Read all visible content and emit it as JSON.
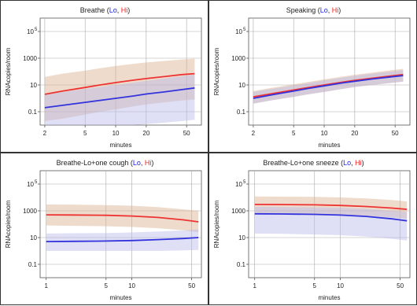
{
  "chart_data": [
    {
      "type": "line",
      "title_prefix": "Breathe",
      "title_open": " (",
      "lo_label": "Lo",
      "sep": ", ",
      "hi_label": "Hi",
      "title_close": ")",
      "xlabel": "minutes",
      "ylabel": "RNAcopies/room",
      "xscale": "log",
      "yscale": "log",
      "xlim": [
        1.8,
        70
      ],
      "ylim": [
        0.01,
        1000000
      ],
      "xticks": [
        {
          "v": 2,
          "t": "2"
        },
        {
          "v": 5,
          "t": "5"
        },
        {
          "v": 10,
          "t": "10"
        },
        {
          "v": 20,
          "t": "20"
        },
        {
          "v": 50,
          "t": "50"
        }
      ],
      "yticks": [
        {
          "v": 0.1,
          "t": "0.1"
        },
        {
          "v": 10,
          "t": "10"
        },
        {
          "v": 1000,
          "t": "1000"
        },
        {
          "v": 100000,
          "t": "10",
          "sup": "5"
        }
      ],
      "grid": true,
      "series": [
        {
          "name": "Hi",
          "color": "#ee3333",
          "band_color": "#d9b08c",
          "x": [
            2,
            3,
            5,
            7,
            10,
            15,
            20,
            30,
            45,
            60
          ],
          "y": [
            2.0,
            3.5,
            6.5,
            10,
            15,
            23,
            30,
            42,
            60,
            70
          ],
          "low": [
            0.02,
            0.03,
            0.06,
            0.1,
            0.15,
            0.25,
            0.35,
            0.5,
            0.7,
            0.8
          ],
          "high": [
            40,
            70,
            120,
            180,
            260,
            380,
            480,
            620,
            800,
            900
          ]
        },
        {
          "name": "Lo",
          "color": "#3333dd",
          "band_color": "#b8b8e8",
          "x": [
            2,
            3,
            5,
            7,
            10,
            15,
            20,
            30,
            45,
            60
          ],
          "y": [
            0.2,
            0.3,
            0.5,
            0.7,
            1.0,
            1.5,
            2.1,
            3.0,
            4.5,
            6
          ],
          "low": [
            0.01,
            0.01,
            0.01,
            0.01,
            0.01,
            0.01,
            0.012,
            0.015,
            0.02,
            0.025
          ],
          "high": [
            2,
            3,
            5,
            7,
            10,
            15,
            20,
            30,
            45,
            60
          ]
        }
      ]
    },
    {
      "type": "line",
      "title_prefix": "Speaking",
      "title_open": " (",
      "lo_label": "Lo",
      "sep": ", ",
      "hi_label": "Hi",
      "title_close": ")",
      "xlabel": "minutes",
      "ylabel": "RNAcopies/room",
      "xscale": "log",
      "yscale": "log",
      "xlim": [
        1.8,
        70
      ],
      "ylim": [
        0.01,
        1000000
      ],
      "xticks": [
        {
          "v": 2,
          "t": "2"
        },
        {
          "v": 5,
          "t": "5"
        },
        {
          "v": 10,
          "t": "10"
        },
        {
          "v": 20,
          "t": "20"
        },
        {
          "v": 50,
          "t": "50"
        }
      ],
      "yticks": [
        {
          "v": 0.1,
          "t": "0.1"
        },
        {
          "v": 10,
          "t": "10"
        },
        {
          "v": 1000,
          "t": "1000"
        },
        {
          "v": 100000,
          "t": "10",
          "sup": "5"
        }
      ],
      "grid": true,
      "series": [
        {
          "name": "Hi",
          "color": "#ee3333",
          "band_color": "#d9b08c",
          "x": [
            2,
            3,
            5,
            7,
            10,
            15,
            20,
            30,
            45,
            60
          ],
          "y": [
            1.3,
            2.2,
            4.2,
            6.5,
            10,
            16,
            22,
            32,
            47,
            60
          ],
          "low": [
            0.4,
            0.7,
            1.3,
            2,
            3,
            5,
            7,
            10,
            14,
            18
          ],
          "high": [
            3.5,
            6,
            11,
            17,
            26,
            42,
            58,
            85,
            125,
            160
          ]
        },
        {
          "name": "Lo",
          "color": "#3333dd",
          "band_color": "#b8b8e8",
          "x": [
            2,
            3,
            5,
            7,
            10,
            15,
            20,
            30,
            45,
            60
          ],
          "y": [
            1.0,
            1.8,
            3.5,
            5.5,
            8.5,
            14,
            19,
            28,
            40,
            50
          ],
          "low": [
            0.4,
            0.7,
            1.3,
            2,
            3,
            5,
            7,
            10,
            14,
            18
          ],
          "high": [
            3,
            5,
            9,
            14,
            22,
            35,
            48,
            70,
            100,
            130
          ]
        }
      ]
    },
    {
      "type": "line",
      "title_prefix": "Breathe-Lo+one cough",
      "title_open": " (",
      "lo_label": "Lo",
      "sep": ", ",
      "hi_label": "Hi",
      "title_close": ")",
      "xlabel": "minutes",
      "ylabel": "RNAcopies/room",
      "xscale": "log",
      "yscale": "log",
      "xlim": [
        0.85,
        65
      ],
      "ylim": [
        0.01,
        1000000
      ],
      "xticks": [
        {
          "v": 1,
          "t": "1"
        },
        {
          "v": 5,
          "t": "5"
        },
        {
          "v": 10,
          "t": "10"
        },
        {
          "v": 50,
          "t": "50"
        }
      ],
      "yticks": [
        {
          "v": 0.1,
          "t": "0.1"
        },
        {
          "v": 10,
          "t": "10"
        },
        {
          "v": 1000,
          "t": "1000"
        },
        {
          "v": 100000,
          "t": "10",
          "sup": "5"
        }
      ],
      "grid": true,
      "series": [
        {
          "name": "Hi",
          "color": "#ee3333",
          "band_color": "#d9b08c",
          "x": [
            1,
            2,
            5,
            10,
            20,
            40,
            60
          ],
          "y": [
            500,
            490,
            460,
            410,
            320,
            210,
            150
          ],
          "low": [
            80,
            75,
            70,
            62,
            50,
            35,
            25
          ],
          "high": [
            3000,
            2900,
            2700,
            2400,
            1900,
            1300,
            1000
          ]
        },
        {
          "name": "Lo",
          "color": "#3333dd",
          "band_color": "#b8b8e8",
          "x": [
            1,
            2,
            5,
            10,
            20,
            40,
            60
          ],
          "y": [
            5,
            5.2,
            5.5,
            6,
            7,
            8.5,
            10
          ],
          "low": [
            1,
            1,
            1,
            1,
            1,
            1.1,
            1.2
          ],
          "high": [
            20,
            21,
            22,
            24,
            28,
            34,
            40
          ]
        }
      ]
    },
    {
      "type": "line",
      "title_prefix": "Breathe-Lo+one sneeze",
      "title_open": " (",
      "lo_label": "Lo",
      "sep": ", ",
      "hi_label": "Hi",
      "title_close": ")",
      "xlabel": "minutes",
      "ylabel": "RNAcopies/room",
      "xscale": "log",
      "yscale": "log",
      "xlim": [
        0.85,
        65
      ],
      "ylim": [
        0.01,
        1000000
      ],
      "xticks": [
        {
          "v": 1,
          "t": "1"
        },
        {
          "v": 5,
          "t": "5"
        },
        {
          "v": 10,
          "t": "10"
        },
        {
          "v": 50,
          "t": "50"
        }
      ],
      "yticks": [
        {
          "v": 0.1,
          "t": "0.1"
        },
        {
          "v": 10,
          "t": "10"
        },
        {
          "v": 1000,
          "t": "1000"
        },
        {
          "v": 100000,
          "t": "10",
          "sup": "5"
        }
      ],
      "grid": true,
      "series": [
        {
          "name": "Hi",
          "color": "#ee3333",
          "band_color": "#d9b08c",
          "x": [
            1,
            2,
            5,
            10,
            20,
            40,
            60
          ],
          "y": [
            3000,
            2950,
            2800,
            2500,
            2100,
            1600,
            1300
          ],
          "low": [
            600,
            580,
            550,
            500,
            420,
            320,
            250
          ],
          "high": [
            12000,
            11500,
            11000,
            10000,
            8500,
            6500,
            5000
          ]
        },
        {
          "name": "Lo",
          "color": "#3333dd",
          "band_color": "#b8b8e8",
          "x": [
            1,
            2,
            5,
            10,
            20,
            40,
            60
          ],
          "y": [
            600,
            580,
            540,
            480,
            380,
            250,
            180
          ],
          "low": [
            20,
            19,
            17,
            15,
            12,
            8,
            6
          ],
          "high": [
            2000,
            1950,
            1850,
            1700,
            1400,
            1000,
            800
          ]
        }
      ]
    }
  ]
}
